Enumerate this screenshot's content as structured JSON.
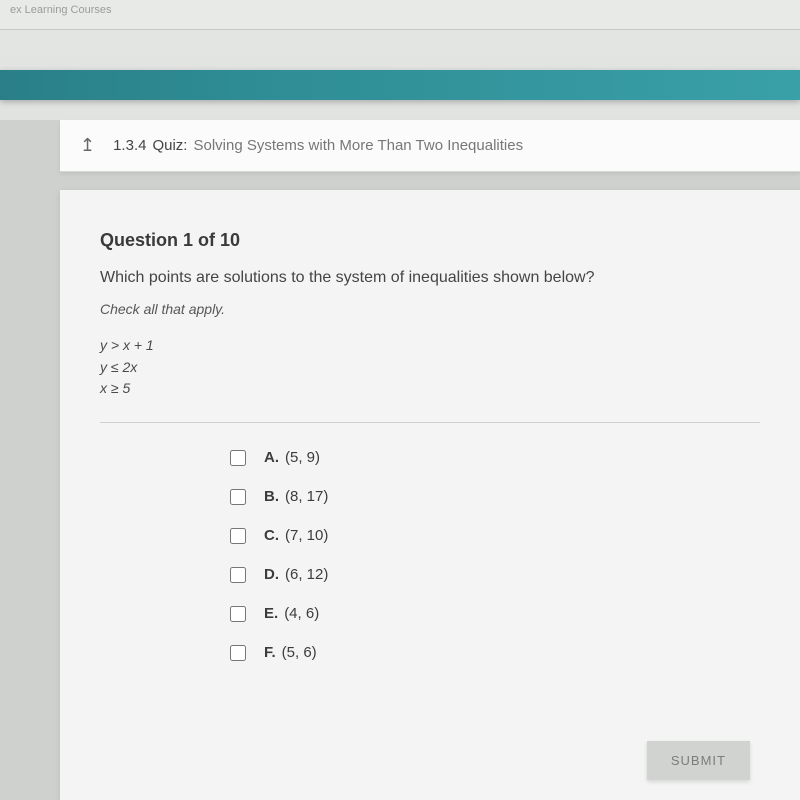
{
  "topbar": {
    "faint_text": "ex Learning   Courses"
  },
  "header": {
    "section_number": "1.3.4",
    "label": "Quiz:",
    "title": "Solving Systems with More Than Two Inequalities"
  },
  "question": {
    "counter": "Question 1 of 10",
    "prompt": "Which points are solutions to the system of inequalities shown below?",
    "instruction": "Check all that apply."
  },
  "inequalities": [
    "y > x + 1",
    "y ≤ 2x",
    "x ≥ 5"
  ],
  "options": [
    {
      "letter": "A.",
      "value": "(5, 9)"
    },
    {
      "letter": "B.",
      "value": "(8, 17)"
    },
    {
      "letter": "C.",
      "value": "(7, 10)"
    },
    {
      "letter": "D.",
      "value": "(6, 12)"
    },
    {
      "letter": "E.",
      "value": "(4, 6)"
    },
    {
      "letter": "F.",
      "value": "(5, 6)"
    }
  ],
  "submit_label": "SUBMIT",
  "colors": {
    "teal": "#2e8c94",
    "page_bg": "#f3f4f3",
    "text": "#3c3c3c"
  }
}
